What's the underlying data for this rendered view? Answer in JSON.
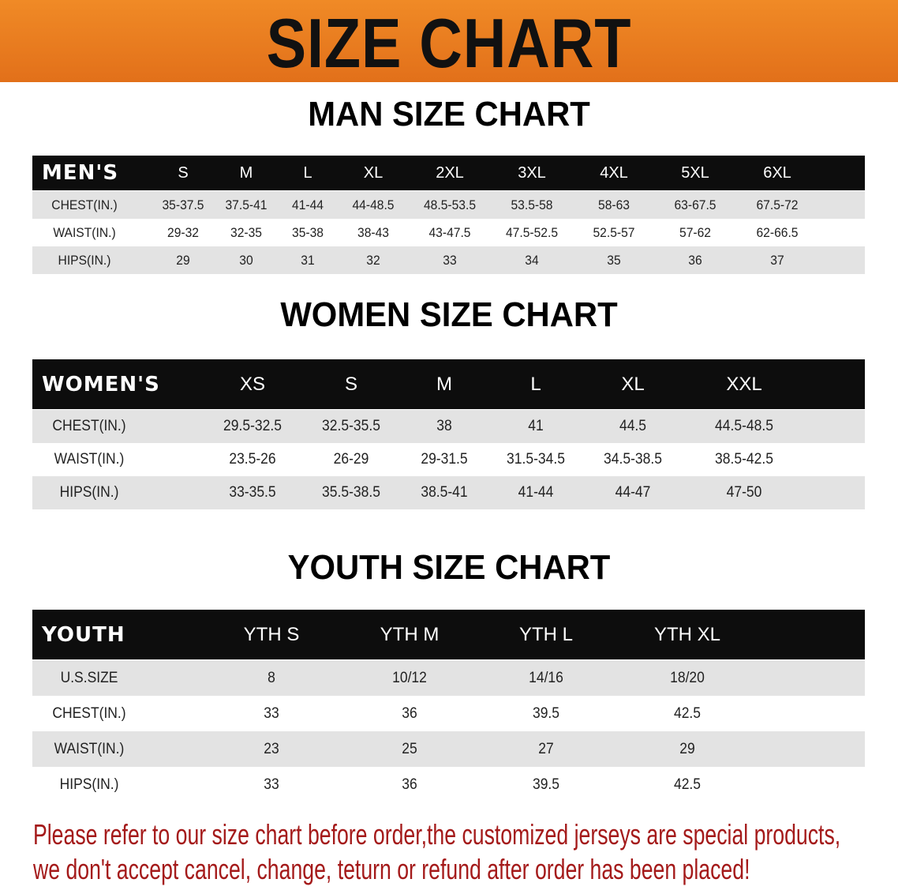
{
  "banner": {
    "title": "SIZE CHART",
    "color": "#e97c20"
  },
  "men": {
    "title": "MAN SIZE CHART",
    "header": [
      "MEN'S",
      "S",
      "M",
      "L",
      "XL",
      "2XL",
      "3XL",
      "4XL",
      "5XL",
      "6XL"
    ],
    "rows": [
      [
        "CHEST(IN.)",
        "35-37.5",
        "37.5-41",
        "41-44",
        "44-48.5",
        "48.5-53.5",
        "53.5-58",
        "58-63",
        "63-67.5",
        "67.5-72"
      ],
      [
        "WAIST(IN.)",
        "29-32",
        "32-35",
        "35-38",
        "38-43",
        "43-47.5",
        "47.5-52.5",
        "52.5-57",
        "57-62",
        "62-66.5"
      ],
      [
        "HIPS(IN.)",
        "29",
        "30",
        "31",
        "32",
        "33",
        "34",
        "35",
        "36",
        "37"
      ]
    ]
  },
  "women": {
    "title": "WOMEN SIZE CHART",
    "header": [
      "WOMEN'S",
      "XS",
      "S",
      "M",
      "L",
      "XL",
      "XXL"
    ],
    "rows": [
      [
        "CHEST(IN.)",
        "29.5-32.5",
        "32.5-35.5",
        "38",
        "41",
        "44.5",
        "44.5-48.5"
      ],
      [
        "WAIST(IN.)",
        "23.5-26",
        "26-29",
        "29-31.5",
        "31.5-34.5",
        "34.5-38.5",
        "38.5-42.5"
      ],
      [
        "HIPS(IN.)",
        "33-35.5",
        "35.5-38.5",
        "38.5-41",
        "41-44",
        "44-47",
        "47-50"
      ]
    ]
  },
  "youth": {
    "title": "YOUTH SIZE CHART",
    "header": [
      "YOUTH",
      "YTH S",
      "YTH M",
      "YTH L",
      "YTH XL"
    ],
    "rows": [
      [
        "U.S.SIZE",
        "8",
        "10/12",
        "14/16",
        "18/20"
      ],
      [
        "CHEST(IN.)",
        "33",
        "36",
        "39.5",
        "42.5"
      ],
      [
        "WAIST(IN.)",
        "23",
        "25",
        "27",
        "29"
      ],
      [
        "HIPS(IN.)",
        "33",
        "36",
        "39.5",
        "42.5"
      ]
    ]
  },
  "notice": {
    "line1": "Please refer to our size chart before order,the customized jerseys are special products,",
    "line2": "we don't accept cancel, change, teturn or refund after order has been placed!",
    "color": "#a41a1a"
  }
}
